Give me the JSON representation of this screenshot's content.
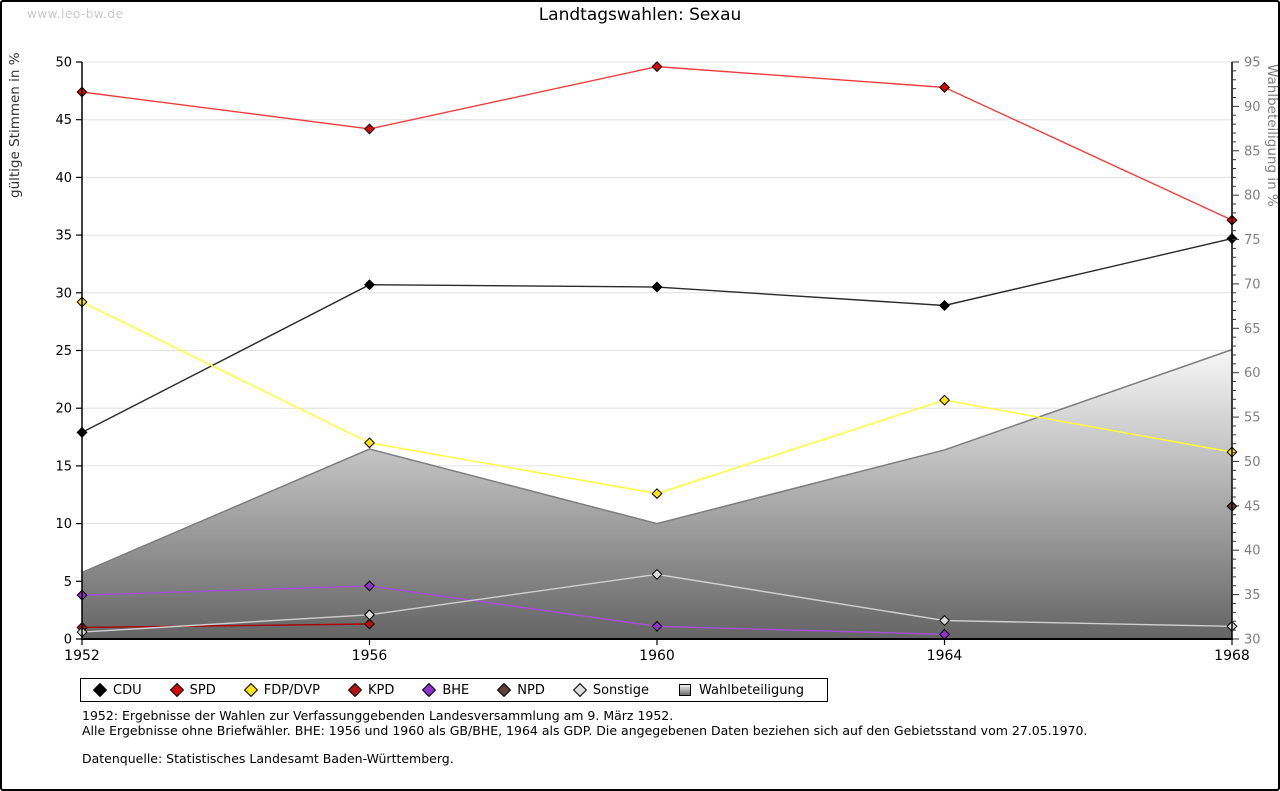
{
  "page": {
    "watermark": "www.leo-bw.de",
    "title": "Landtagswahlen: Sexau",
    "footnotes": [
      "1952: Ergebnisse der Wahlen zur Verfassunggebenden Landesversammlung am 9. März 1952.",
      "Alle Ergebnisse ohne Briefwähler. BHE: 1956 und 1960 als GB/BHE, 1964 als GDP. Die angegebenen Daten beziehen sich auf den Gebietsstand vom 27.05.1970."
    ],
    "source": "Datenquelle: Statistisches Landesamt Baden-Württemberg."
  },
  "chart_data": {
    "type": "line",
    "title": "Landtagswahlen: Sexau",
    "x": [
      1952,
      1956,
      1960,
      1964,
      1968
    ],
    "left_axis": {
      "label": "gültige Stimmen in %",
      "min": 0,
      "max": 50,
      "tick_step": 5
    },
    "right_axis": {
      "label": "Wahlbeteiligung in %",
      "min": 30,
      "max": 95,
      "tick_step": 5,
      "minor_step": 1
    },
    "grid": true,
    "legend_position": "bottom",
    "colors": {
      "gridline": "#e0e0e0",
      "axis": "#000000",
      "right_axis_text": "#7f7f7f",
      "area_edge": "#7d7d7d",
      "area_gradient_top": "#f7f7f7",
      "area_gradient_bottom": "#646464"
    },
    "series": [
      {
        "name": "CDU",
        "axis": "left",
        "style": "line",
        "line_color": "#2a2a2a",
        "marker_color": "#000000",
        "values": [
          17.9,
          30.7,
          30.5,
          28.9,
          34.7
        ]
      },
      {
        "name": "SPD",
        "axis": "left",
        "style": "line",
        "line_color": "#ef3b3b",
        "marker_color": "#d40a0a",
        "values": [
          47.4,
          44.2,
          49.6,
          47.8,
          36.3
        ]
      },
      {
        "name": "FDP/DVP",
        "axis": "left",
        "style": "line",
        "line_color": "#ffff2e",
        "marker_color": "#ffe312",
        "values": [
          29.2,
          17.0,
          12.6,
          20.7,
          16.2
        ]
      },
      {
        "name": "KPD",
        "axis": "left",
        "style": "line",
        "line_color": "#aa0000",
        "marker_color": "#b51212",
        "values": [
          1.0,
          1.3,
          null,
          null,
          null
        ]
      },
      {
        "name": "BHE",
        "axis": "left",
        "style": "line",
        "line_color": "#a64fd6",
        "marker_color": "#9232c8",
        "values": [
          3.8,
          4.6,
          1.1,
          0.4,
          null
        ]
      },
      {
        "name": "NPD",
        "axis": "left",
        "style": "line",
        "line_color": "#5d4037",
        "marker_color": "#5d4037",
        "values": [
          null,
          null,
          null,
          null,
          11.5
        ]
      },
      {
        "name": "Sonstige",
        "axis": "left",
        "style": "line",
        "line_color": "#d0d0d0",
        "marker_color": "#dcdcdc",
        "values": [
          0.6,
          2.1,
          5.6,
          1.6,
          1.1
        ]
      },
      {
        "name": "Wahlbeteiligung",
        "axis": "right",
        "style": "area",
        "line_color": "#7d7d7d",
        "marker_color": "#aaaaaa",
        "values": [
          37.5,
          51.4,
          43.0,
          51.3,
          62.6
        ]
      }
    ]
  }
}
